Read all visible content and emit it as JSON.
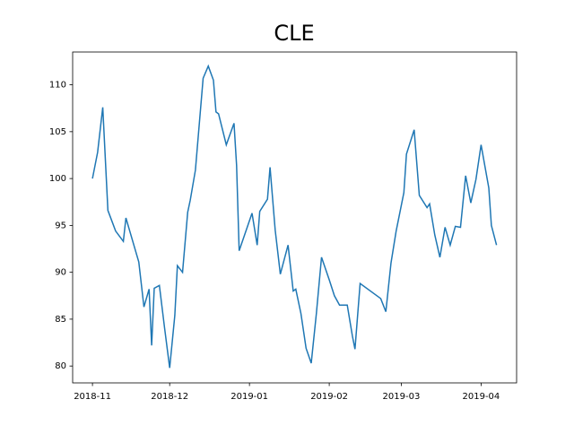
{
  "chart_data": {
    "type": "line",
    "title": "CLE",
    "x": [
      0,
      2,
      4,
      6,
      9,
      12,
      13,
      18,
      20,
      22,
      23,
      24,
      26,
      28,
      30,
      32,
      33,
      35,
      37,
      38,
      40,
      43,
      45,
      47,
      48,
      49,
      52,
      55,
      56,
      57,
      62,
      64,
      65,
      68,
      69,
      71,
      73,
      76,
      78,
      79,
      81,
      83,
      85,
      87,
      89,
      92,
      94,
      96,
      99,
      101,
      102,
      104,
      112,
      114,
      116,
      118,
      121,
      122,
      125,
      127,
      130,
      131,
      133,
      135,
      137,
      139,
      141,
      143,
      145,
      147,
      149,
      151,
      154,
      155,
      157
    ],
    "series": [
      {
        "color": "#1f77b4",
        "values": [
          100.0,
          102.8,
          107.6,
          96.6,
          94.4,
          93.3,
          95.8,
          91.1,
          86.3,
          88.2,
          82.2,
          88.3,
          88.6,
          84.1,
          79.8,
          85.4,
          90.7,
          90.0,
          96.4,
          97.7,
          100.9,
          110.7,
          112.0,
          110.5,
          107.1,
          106.9,
          103.6,
          105.9,
          101.4,
          92.3,
          96.3,
          92.9,
          96.5,
          97.8,
          101.2,
          94.5,
          89.8,
          92.9,
          88.0,
          88.2,
          85.6,
          81.9,
          80.3,
          85.6,
          91.6,
          89.2,
          87.5,
          86.5,
          86.5,
          83.2,
          81.8,
          88.8,
          87.2,
          85.8,
          91.0,
          94.4,
          98.5,
          102.6,
          105.2,
          98.2,
          96.9,
          97.3,
          94.0,
          91.6,
          94.8,
          92.9,
          94.9,
          94.8,
          100.3,
          97.4,
          99.9,
          103.6,
          99.0,
          95.0,
          92.9
        ]
      }
    ],
    "xlim": [
      -7.7,
      164.8
    ],
    "xticks": [
      {
        "value": 0,
        "label": "2018-11"
      },
      {
        "value": 30,
        "label": "2018-12"
      },
      {
        "value": 61,
        "label": "2019-01"
      },
      {
        "value": 92,
        "label": "2019-02"
      },
      {
        "value": 120,
        "label": "2019-03"
      },
      {
        "value": 151,
        "label": "2019-04"
      }
    ],
    "ylim": [
      78.2,
      113.5
    ],
    "yticks": [
      80,
      85,
      90,
      95,
      100,
      105,
      110
    ],
    "grid": false
  }
}
